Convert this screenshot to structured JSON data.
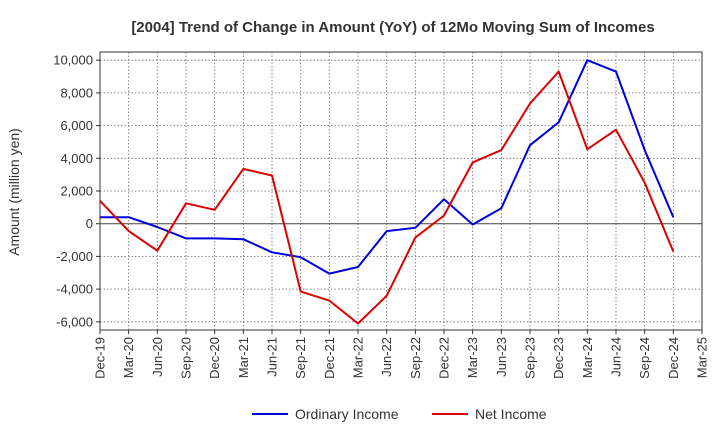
{
  "chart_data": {
    "type": "line",
    "title": "[2004]  Trend of Change in Amount (YoY) of 12Mo Moving Sum of Incomes",
    "ylabel": "Amount (million yen)",
    "xlabel": "",
    "ylim": [
      -6500,
      10500
    ],
    "yticks": [
      -6000,
      -4000,
      -2000,
      0,
      2000,
      4000,
      6000,
      8000,
      10000
    ],
    "ytick_labels": [
      "-6,000",
      "-4,000",
      "-2,000",
      "0",
      "2,000",
      "4,000",
      "6,000",
      "8,000",
      "10,000"
    ],
    "categories": [
      "Dec-19",
      "Mar-20",
      "Jun-20",
      "Sep-20",
      "Dec-20",
      "Mar-21",
      "Jun-21",
      "Sep-21",
      "Dec-21",
      "Mar-22",
      "Jun-22",
      "Sep-22",
      "Dec-22",
      "Mar-23",
      "Jun-23",
      "Sep-23",
      "Dec-23",
      "Mar-24",
      "Jun-24",
      "Sep-24",
      "Dec-24",
      "Mar-25"
    ],
    "grid": true,
    "legend_position": "bottom-center",
    "series": [
      {
        "name": "Ordinary Income",
        "color": "#0000dd",
        "values": [
          400,
          400,
          -200,
          -900,
          -900,
          -950,
          -1750,
          -2050,
          -3050,
          -2650,
          -450,
          -250,
          1500,
          -50,
          950,
          4800,
          6200,
          10000,
          9300,
          4500,
          400,
          null
        ]
      },
      {
        "name": "Net Income",
        "color": "#dd0000",
        "values": [
          1400,
          -450,
          -1650,
          1250,
          850,
          3350,
          2950,
          -4150,
          -4700,
          -6100,
          -4400,
          -850,
          500,
          3750,
          4500,
          7350,
          9300,
          4550,
          5750,
          2500,
          -1700,
          null
        ]
      }
    ]
  }
}
